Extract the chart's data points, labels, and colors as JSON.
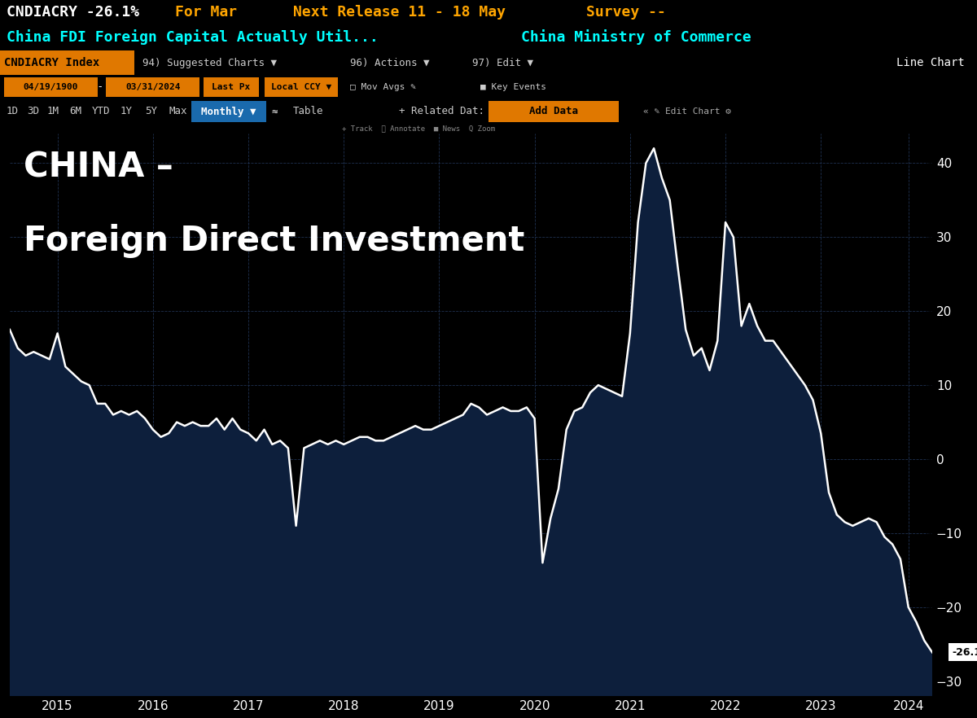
{
  "title_line1": "CHINA –",
  "title_line2": "Foreign Direct Investment",
  "last_value": -26.1,
  "ylim": [
    -32,
    44
  ],
  "yticks": [
    -30,
    -20,
    -10,
    0,
    10,
    20,
    30,
    40
  ],
  "bg_color": "#000000",
  "chart_bg": "#000000",
  "fill_color": "#0d1f3c",
  "line_color": "#ffffff",
  "grid_color": "#1e3050",
  "values": [
    17.5,
    15.0,
    14.0,
    14.5,
    14.0,
    13.5,
    17.0,
    12.5,
    11.5,
    10.5,
    10.0,
    7.5,
    7.5,
    6.0,
    6.5,
    6.0,
    6.5,
    5.5,
    4.0,
    3.0,
    3.5,
    5.0,
    4.5,
    5.0,
    4.5,
    4.5,
    5.5,
    4.0,
    5.5,
    4.0,
    3.5,
    2.5,
    4.0,
    2.0,
    2.5,
    1.5,
    -9.0,
    1.5,
    2.0,
    2.5,
    2.0,
    2.5,
    2.0,
    2.5,
    3.0,
    3.0,
    2.5,
    2.5,
    3.0,
    3.5,
    4.0,
    4.5,
    4.0,
    4.0,
    4.5,
    5.0,
    5.5,
    6.0,
    7.5,
    7.0,
    6.0,
    6.5,
    7.0,
    6.5,
    6.5,
    7.0,
    5.5,
    -14.0,
    -8.0,
    -4.0,
    4.0,
    6.5,
    7.0,
    9.0,
    10.0,
    9.5,
    9.0,
    8.5,
    17.0,
    32.0,
    40.0,
    42.0,
    38.0,
    35.0,
    26.0,
    17.5,
    14.0,
    15.0,
    12.0,
    16.0,
    32.0,
    30.0,
    18.0,
    21.0,
    18.0,
    16.0,
    16.0,
    14.5,
    13.0,
    11.5,
    10.0,
    8.0,
    3.5,
    -4.5,
    -7.5,
    -8.5,
    -9.0,
    -8.5,
    -8.0,
    -8.5,
    -10.5,
    -11.5,
    -13.5,
    -20.0,
    -22.0,
    -24.5,
    -26.1
  ],
  "xtick_labels": [
    "2015",
    "2016",
    "2017",
    "2018",
    "2019",
    "2020",
    "2021",
    "2022",
    "2023",
    "2024"
  ],
  "xtick_positions": [
    6,
    18,
    30,
    42,
    54,
    66,
    78,
    90,
    102,
    113
  ]
}
